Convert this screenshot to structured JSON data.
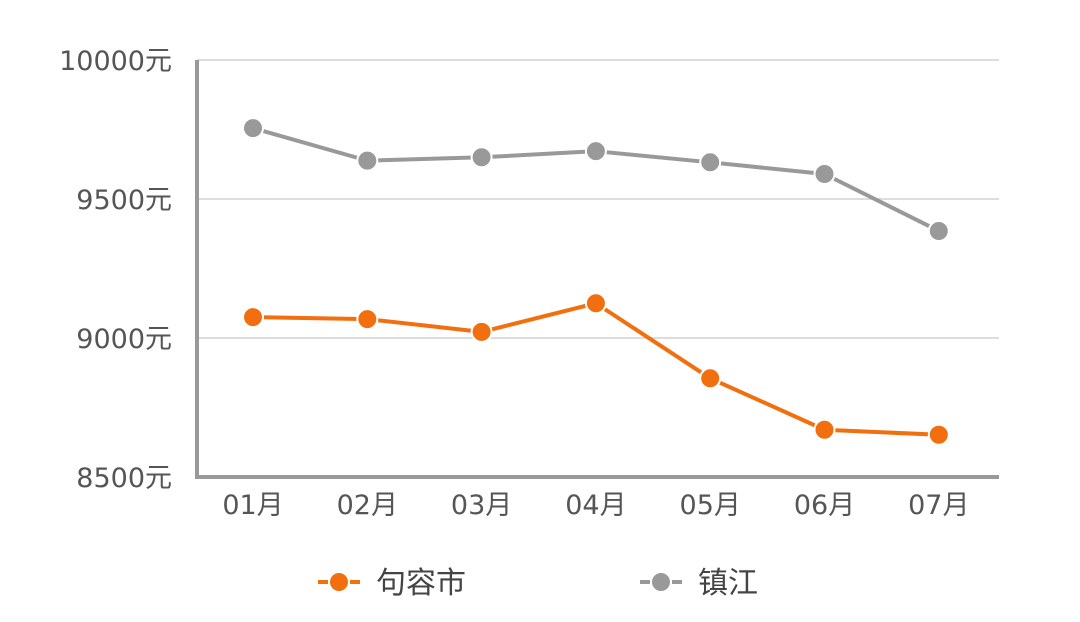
{
  "chart_data": {
    "type": "line",
    "categories": [
      "01月",
      "02月",
      "03月",
      "04月",
      "05月",
      "06月",
      "07月"
    ],
    "y_ticks": [
      "8500元",
      "9000元",
      "9500元",
      "10000元"
    ],
    "ylim": [
      8500,
      10000
    ],
    "grid": true,
    "legend_position": "bottom",
    "series": [
      {
        "name": "句容市",
        "color": "#f26f0f",
        "values": [
          9075,
          9068,
          9022,
          9125,
          8855,
          8670,
          8652
        ]
      },
      {
        "name": "镇江",
        "color": "#999999",
        "values": [
          9755,
          9638,
          9650,
          9672,
          9632,
          9590,
          9385
        ]
      }
    ]
  }
}
